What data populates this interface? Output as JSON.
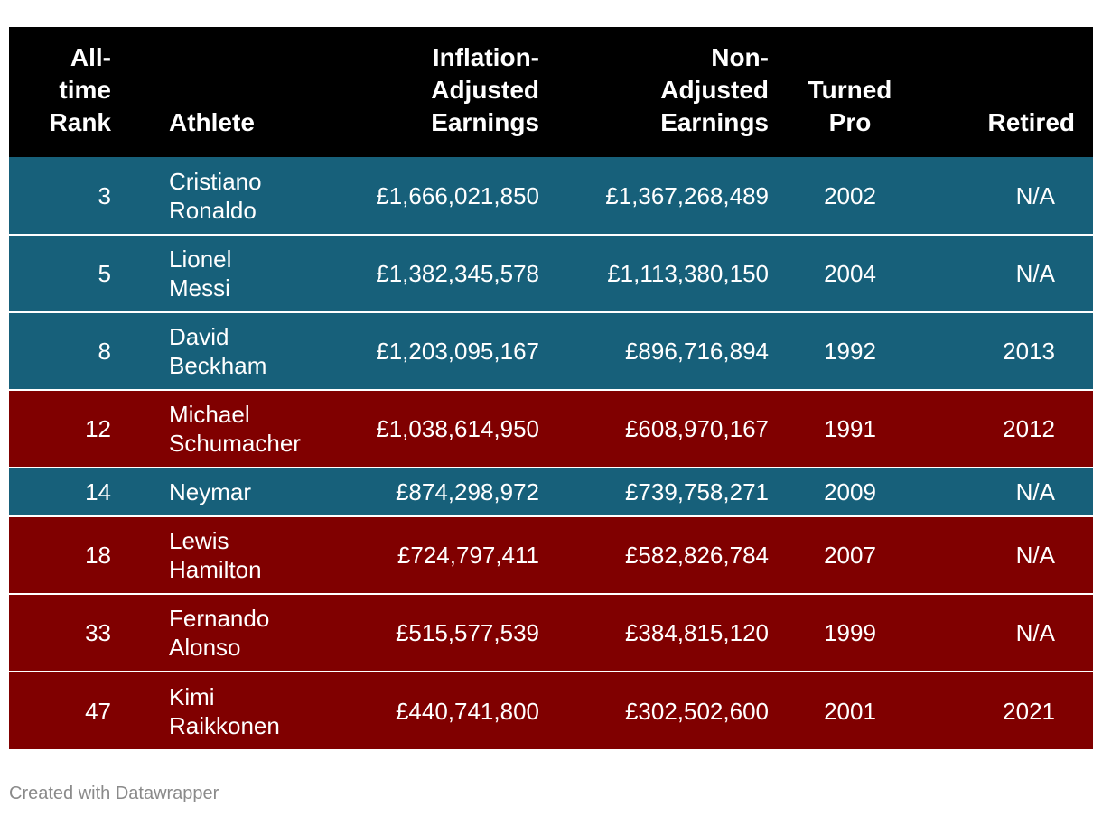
{
  "colors": {
    "header_bg": "#000000",
    "football": "#17607a",
    "f1": "#800000",
    "text": "#ffffff",
    "footer": "#8a8a8a"
  },
  "chart_data": {
    "type": "table",
    "columns": [
      "All-\ntime\nRank",
      "Athlete",
      "Inflation-\nAdjusted\nEarnings",
      "Non-\nAdjusted\nEarnings",
      "Turned\nPro",
      "Retired"
    ],
    "rows": [
      {
        "rank": "3",
        "athlete": "Cristiano\nRonaldo",
        "inflation_adjusted": "£1,666,021,850",
        "non_adjusted": "£1,367,268,489",
        "turned_pro": "2002",
        "retired": "N/A",
        "color": "#17607a"
      },
      {
        "rank": "5",
        "athlete": "Lionel\nMessi",
        "inflation_adjusted": "£1,382,345,578",
        "non_adjusted": "£1,113,380,150",
        "turned_pro": "2004",
        "retired": "N/A",
        "color": "#17607a"
      },
      {
        "rank": "8",
        "athlete": "David\nBeckham",
        "inflation_adjusted": "£1,203,095,167",
        "non_adjusted": "£896,716,894",
        "turned_pro": "1992",
        "retired": "2013",
        "color": "#17607a"
      },
      {
        "rank": "12",
        "athlete": "Michael\nSchumacher",
        "inflation_adjusted": "£1,038,614,950",
        "non_adjusted": "£608,970,167",
        "turned_pro": "1991",
        "retired": "2012",
        "color": "#800000"
      },
      {
        "rank": "14",
        "athlete": "Neymar",
        "inflation_adjusted": "£874,298,972",
        "non_adjusted": "£739,758,271",
        "turned_pro": "2009",
        "retired": "N/A",
        "color": "#17607a"
      },
      {
        "rank": "18",
        "athlete": "Lewis\nHamilton",
        "inflation_adjusted": "£724,797,411",
        "non_adjusted": "£582,826,784",
        "turned_pro": "2007",
        "retired": "N/A",
        "color": "#800000"
      },
      {
        "rank": "33",
        "athlete": "Fernando\nAlonso",
        "inflation_adjusted": "£515,577,539",
        "non_adjusted": "£384,815,120",
        "turned_pro": "1999",
        "retired": "N/A",
        "color": "#800000"
      },
      {
        "rank": "47",
        "athlete": "Kimi\nRaikkonen",
        "inflation_adjusted": "£440,741,800",
        "non_adjusted": "£302,502,600",
        "turned_pro": "2001",
        "retired": "2021",
        "color": "#800000"
      }
    ]
  },
  "footer": "Created with Datawrapper"
}
